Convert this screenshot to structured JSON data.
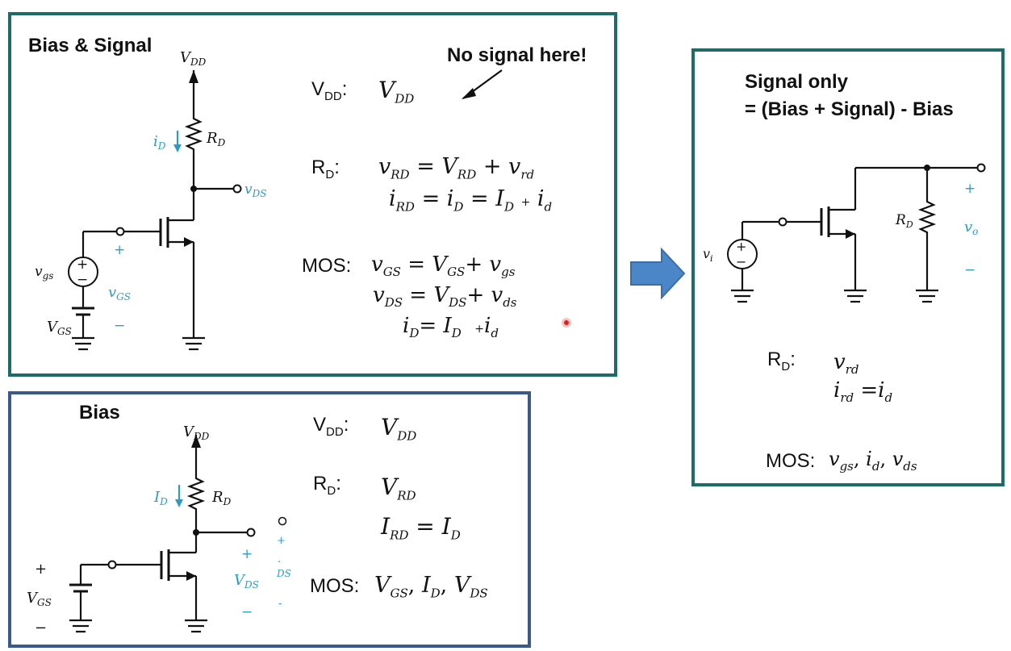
{
  "panel_bias_signal": {
    "title": "Bias & Signal",
    "note": "No signal here!",
    "circuit": {
      "vdd": "V",
      "vdd_sub": "DD",
      "id": "i",
      "id_sub": "D",
      "rd": "R",
      "rd_sub": "D",
      "vds": "v",
      "vds_sub": "DS",
      "vgs_src": "v",
      "vgs_src_sub": "gs",
      "vgs": "v",
      "vgs_sub": "GS",
      "plus": "+",
      "minus": "−",
      "VGS": "V",
      "VGS_sub": "GS"
    },
    "rows": {
      "vdd_label": "V",
      "vdd_label_sub": "DD",
      "vdd_eq": "V",
      "vdd_eq_sub": "DD",
      "rd_label": "R",
      "rd_label_sub": "D",
      "rd_eq1": {
        "a": "v",
        "a_sub": "RD",
        "b": "V",
        "b_sub": "RD",
        "c": "v",
        "c_sub": "rd"
      },
      "rd_eq2": {
        "a": "i",
        "a_sub": "RD",
        "b": "i",
        "b_sub": "D",
        "c": "I",
        "c_sub": "D",
        "d": "i",
        "d_sub": "d"
      },
      "mos_label": "MOS:",
      "mos_eq1": {
        "a": "v",
        "a_sub": "GS",
        "b": "V",
        "b_sub": "GS",
        "c": "v",
        "c_sub": "gs"
      },
      "mos_eq2": {
        "a": "v",
        "a_sub": "DS",
        "b": "V",
        "b_sub": "DS",
        "c": "v",
        "c_sub": "ds"
      },
      "mos_eq3": {
        "a": "i",
        "a_sub": "D",
        "b": "I",
        "b_sub": "D",
        "c": "i",
        "c_sub": "d"
      }
    }
  },
  "panel_bias": {
    "title": "Bias",
    "circuit": {
      "vdd": "V",
      "vdd_sub": "DD",
      "id": "I",
      "id_sub": "D",
      "rd": "R",
      "rd_sub": "D",
      "plus": "+",
      "minus": "−",
      "vgs": "V",
      "vgs_sub": "GS",
      "vds": "V",
      "vds_sub": "DS",
      "ghost_plus": "+",
      "ghost_dot": ".",
      "ghost_ds": "DS",
      "ghost_minus": "-"
    },
    "rows": {
      "vdd_label": "V",
      "vdd_label_sub": "DD",
      "vdd_eq": "V",
      "vdd_eq_sub": "DD",
      "rd_label": "R",
      "rd_label_sub": "D",
      "rd_eq1": {
        "a": "V",
        "a_sub": "RD"
      },
      "rd_eq2": {
        "a": "I",
        "a_sub": "RD",
        "b": "I",
        "b_sub": "D"
      },
      "mos_label": "MOS:",
      "mos_eq": {
        "a": "V",
        "a_sub": "GS",
        "b": "I",
        "b_sub": "D",
        "c": "V",
        "c_sub": "DS"
      }
    }
  },
  "panel_signal": {
    "title_line1": "Signal only",
    "title_line2": "= (Bias + Signal) - Bias",
    "circuit": {
      "vi": "v",
      "vi_sub": "i",
      "rd": "R",
      "rd_sub": "D",
      "plus": "+",
      "vo": "v",
      "vo_sub": "o",
      "minus": "−"
    },
    "rows": {
      "rd_label": "R",
      "rd_label_sub": "D",
      "rd_eq1": {
        "a": "v",
        "a_sub": "rd"
      },
      "rd_eq2": {
        "a": "i",
        "a_sub": "rd",
        "b": "i",
        "b_sub": "d"
      },
      "mos_label": "MOS:",
      "mos_eq": {
        "a": "v",
        "a_sub": "gs",
        "b": "i",
        "b_sub": "d",
        "c": "v",
        "c_sub": "ds"
      }
    }
  },
  "colors": {
    "teal_border": "#1f6b67",
    "blue_border": "#3a5b8a",
    "cyan_text": "#2a9cc8",
    "arrow_fill": "#4a86c8"
  }
}
